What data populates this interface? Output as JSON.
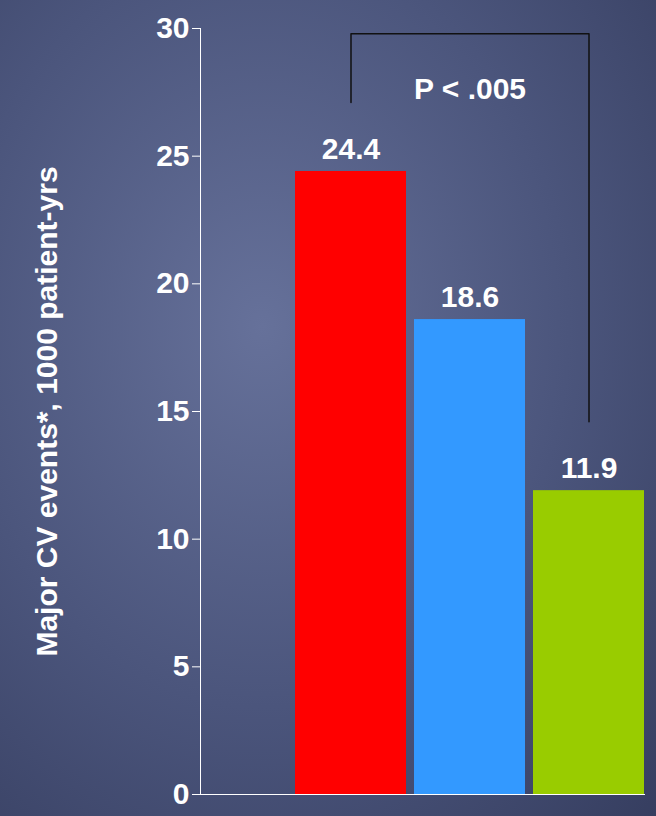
{
  "chart_data": {
    "type": "bar",
    "y_label": "Major CV events*, 1000 patient-yrs",
    "categories": [
      null,
      null,
      null
    ],
    "values": [
      24.4,
      18.6,
      11.9
    ],
    "colors": [
      "#ff0000",
      "#3399ff",
      "#99cc00"
    ],
    "ylim": [
      0,
      30
    ],
    "yticks": [
      0,
      5,
      10,
      15,
      20,
      25,
      30
    ],
    "data_labels": true,
    "tick_labels": "y",
    "annotations": [
      {
        "text": "P < .005",
        "between": [
          0,
          2
        ]
      }
    ]
  }
}
